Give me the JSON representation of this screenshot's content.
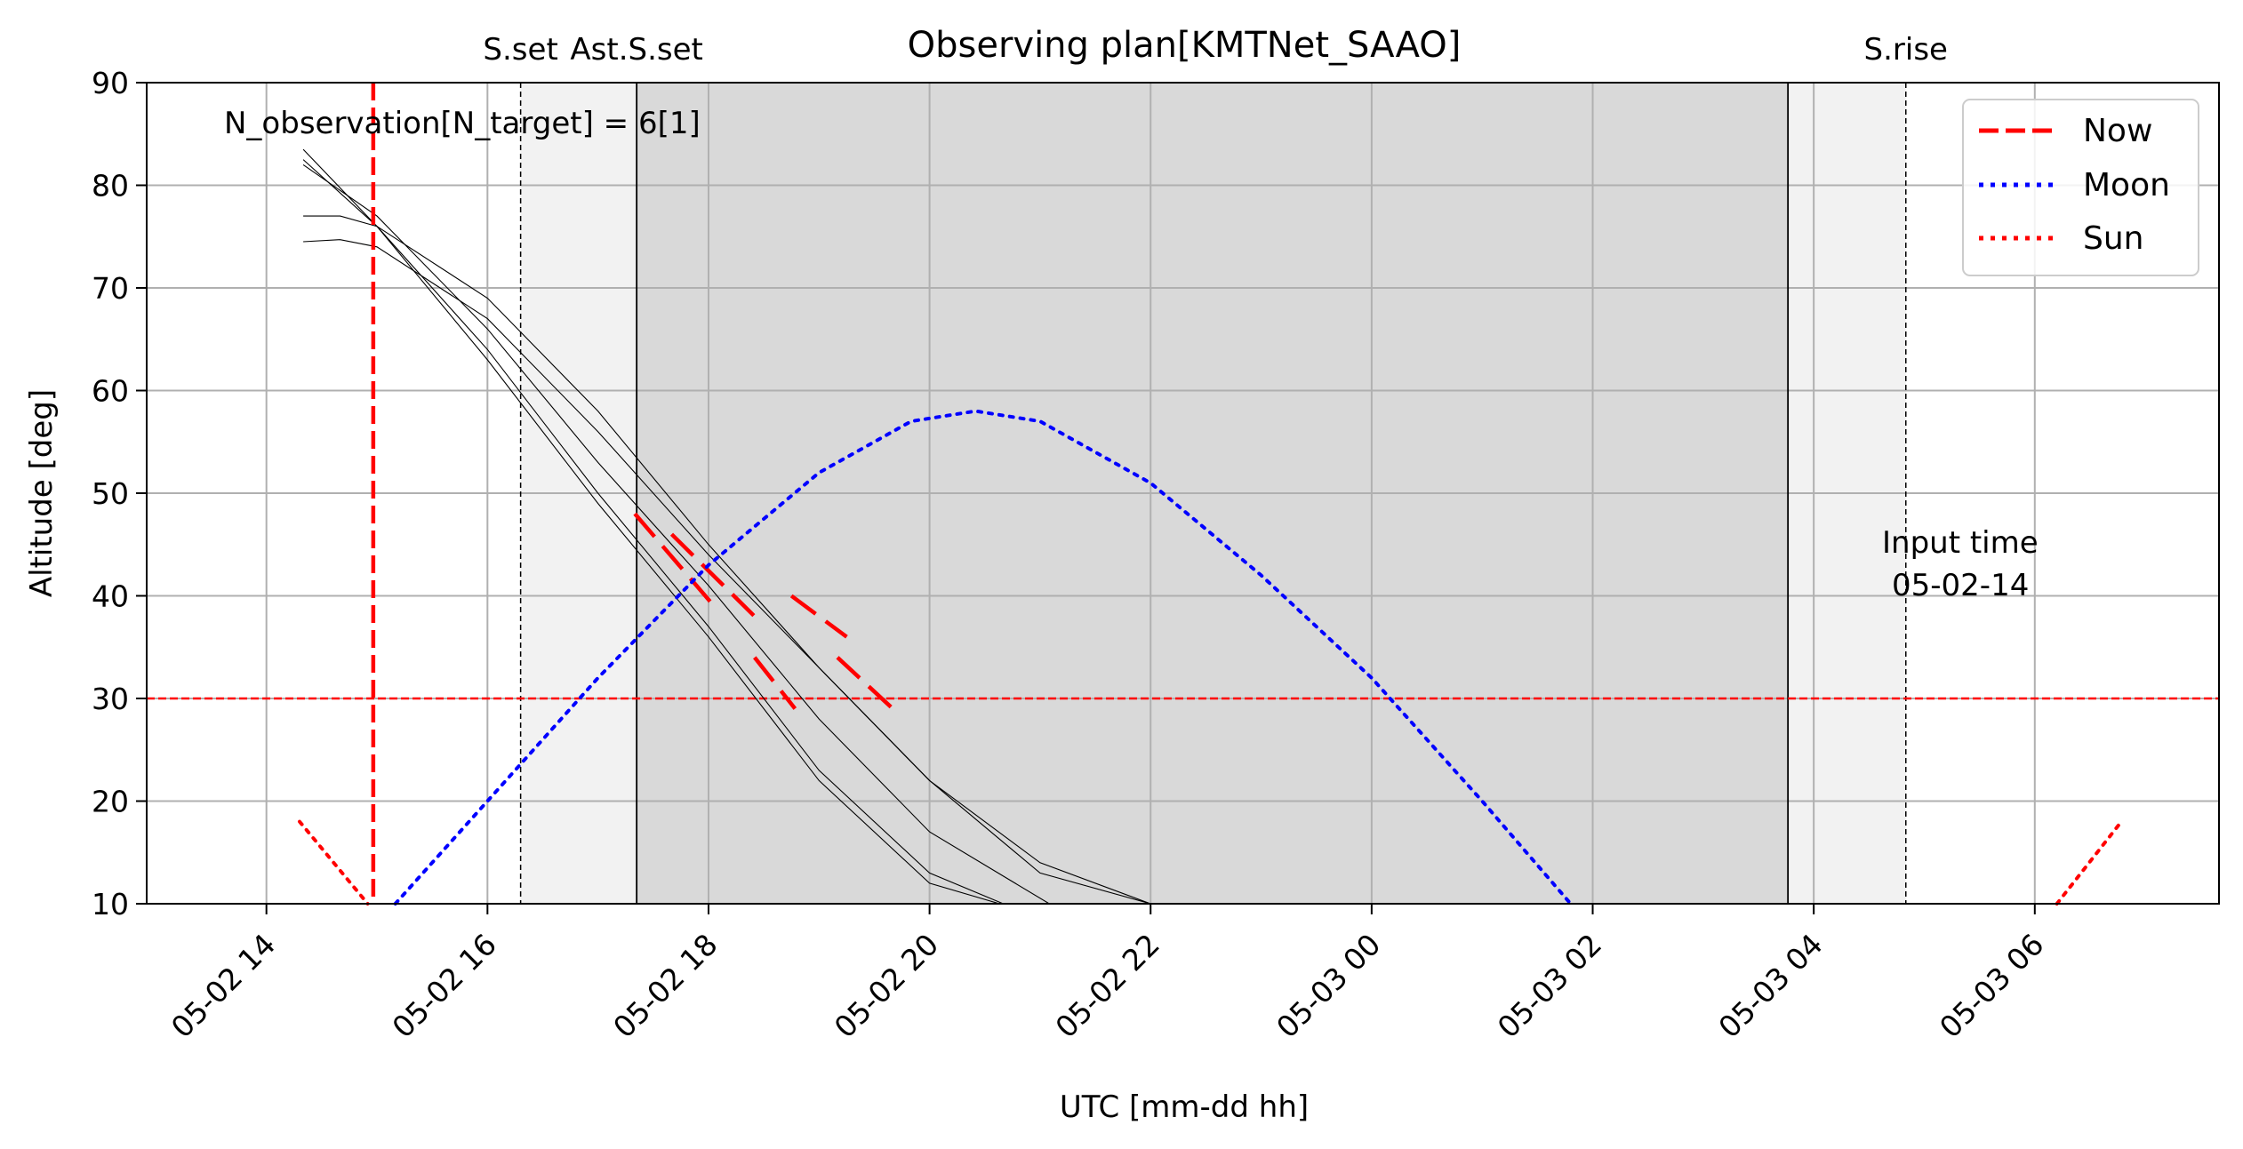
{
  "chart_data": {
    "type": "line",
    "title": "Observing plan[KMTNet_SAAO]",
    "xlabel": "UTC [mm-dd hh]",
    "ylabel": "Altitude [deg]",
    "xlim": [
      "05-02 12:55",
      "05-03 07:40"
    ],
    "ylim": [
      10,
      90
    ],
    "grid": true,
    "legend_position": "top-right",
    "x_ticks": [
      {
        "time": "05-02 14:00",
        "label": "05-02 14"
      },
      {
        "time": "05-02 16:00",
        "label": "05-02 16"
      },
      {
        "time": "05-02 18:00",
        "label": "05-02 18"
      },
      {
        "time": "05-02 20:00",
        "label": "05-02 20"
      },
      {
        "time": "05-02 22:00",
        "label": "05-02 22"
      },
      {
        "time": "05-03 00:00",
        "label": "05-03 00"
      },
      {
        "time": "05-03 02:00",
        "label": "05-03 02"
      },
      {
        "time": "05-03 04:00",
        "label": "05-03 04"
      },
      {
        "time": "05-03 06:00",
        "label": "05-03 06"
      }
    ],
    "y_ticks": [
      10,
      20,
      30,
      40,
      50,
      60,
      70,
      80,
      90
    ],
    "annotation": "N_observation[N_target] = 6[1]",
    "input_time": {
      "label_line1": "Input time",
      "label_line2": "05-02-14"
    },
    "twilight_markers": [
      {
        "label": "S.set",
        "time": "05-02 16:18",
        "style": "dashed"
      },
      {
        "label": "Ast.S.set",
        "time": "05-02 17:21",
        "style": "solid"
      },
      {
        "label": "",
        "time": "05-03 03:46",
        "style": "solid"
      },
      {
        "label": "S.rise",
        "time": "05-03 04:50",
        "style": "dashed"
      }
    ],
    "shading": [
      {
        "from": "05-02 16:18",
        "to": "05-03 04:50",
        "color": "#f2f2f2"
      },
      {
        "from": "05-02 17:21",
        "to": "05-03 03:46",
        "color": "#d9d9d9"
      }
    ],
    "now_line": {
      "time": "05-02 14:58",
      "color": "#ff0000"
    },
    "altitude_limit": {
      "value": 30,
      "color": "#ff0000"
    },
    "legend": [
      {
        "label": "Now",
        "color": "#ff0000",
        "style": "dashed"
      },
      {
        "label": "Moon",
        "color": "#0000ff",
        "style": "dotted"
      },
      {
        "label": "Sun",
        "color": "#ff0000",
        "style": "dotted"
      }
    ],
    "moon": {
      "color": "#0000ff",
      "points": [
        [
          "05-02 15:10",
          10
        ],
        [
          "05-02 16:00",
          20
        ],
        [
          "05-02 17:00",
          32
        ],
        [
          "05-02 18:00",
          43
        ],
        [
          "05-02 19:00",
          52
        ],
        [
          "05-02 19:50",
          57
        ],
        [
          "05-02 20:25",
          58
        ],
        [
          "05-02 21:00",
          57
        ],
        [
          "05-02 22:00",
          51
        ],
        [
          "05-02 23:00",
          42
        ],
        [
          "05-03 00:00",
          32
        ],
        [
          "05-03 01:00",
          20
        ],
        [
          "05-03 01:48",
          10
        ]
      ]
    },
    "sun": {
      "color": "#ff0000",
      "segments": [
        [
          [
            "05-02 14:18",
            18
          ],
          [
            "05-02 14:55",
            10
          ]
        ],
        [
          [
            "05-03 06:12",
            10
          ],
          [
            "05-03 06:47",
            18
          ]
        ]
      ]
    },
    "targets": [
      {
        "points": [
          [
            "05-02 14:20",
            83.5
          ],
          [
            "05-02 15:00",
            76
          ],
          [
            "05-02 16:00",
            63
          ],
          [
            "05-02 17:00",
            49
          ],
          [
            "05-02 18:00",
            36
          ],
          [
            "05-02 19:00",
            22
          ],
          [
            "05-02 20:00",
            12
          ],
          [
            "05-02 20:38",
            10
          ]
        ]
      },
      {
        "points": [
          [
            "05-02 14:20",
            82.5
          ],
          [
            "05-02 15:00",
            76
          ],
          [
            "05-02 16:00",
            64
          ],
          [
            "05-02 17:00",
            50
          ],
          [
            "05-02 18:00",
            37
          ],
          [
            "05-02 19:00",
            23
          ],
          [
            "05-02 20:00",
            13
          ],
          [
            "05-02 20:40",
            10
          ]
        ]
      },
      {
        "points": [
          [
            "05-02 14:20",
            82
          ],
          [
            "05-02 15:00",
            77
          ],
          [
            "05-02 16:00",
            66
          ],
          [
            "05-02 17:00",
            53
          ],
          [
            "05-02 18:00",
            41
          ],
          [
            "05-02 19:00",
            28
          ],
          [
            "05-02 20:00",
            17
          ],
          [
            "05-02 21:05",
            10
          ]
        ]
      },
      {
        "points": [
          [
            "05-02 14:20",
            77
          ],
          [
            "05-02 14:40",
            77
          ],
          [
            "05-02 15:00",
            76
          ],
          [
            "05-02 16:00",
            69
          ],
          [
            "05-02 17:00",
            58
          ],
          [
            "05-02 18:00",
            45
          ],
          [
            "05-02 19:00",
            33
          ],
          [
            "05-02 20:00",
            22
          ],
          [
            "05-02 21:00",
            13
          ],
          [
            "05-02 22:00",
            10
          ]
        ]
      },
      {
        "points": [
          [
            "05-02 14:20",
            74.5
          ],
          [
            "05-02 14:40",
            74.7
          ],
          [
            "05-02 15:00",
            74
          ],
          [
            "05-02 16:00",
            67
          ],
          [
            "05-02 17:00",
            56
          ],
          [
            "05-02 18:00",
            44
          ],
          [
            "05-02 19:00",
            33
          ],
          [
            "05-02 20:00",
            22
          ],
          [
            "05-02 21:00",
            14
          ],
          [
            "05-02 22:00",
            10
          ]
        ]
      }
    ],
    "observation_segments": [
      [
        [
          "05-02 17:20",
          48
        ],
        [
          "05-02 18:03",
          39
        ]
      ],
      [
        [
          "05-02 17:40",
          46
        ],
        [
          "05-02 18:25",
          38
        ]
      ],
      [
        [
          "05-02 18:25",
          34
        ],
        [
          "05-02 18:47",
          29
        ]
      ],
      [
        [
          "05-02 18:45",
          40
        ],
        [
          "05-02 19:15",
          36
        ]
      ],
      [
        [
          "05-02 19:10",
          34
        ],
        [
          "05-02 19:40",
          29
        ]
      ]
    ]
  }
}
